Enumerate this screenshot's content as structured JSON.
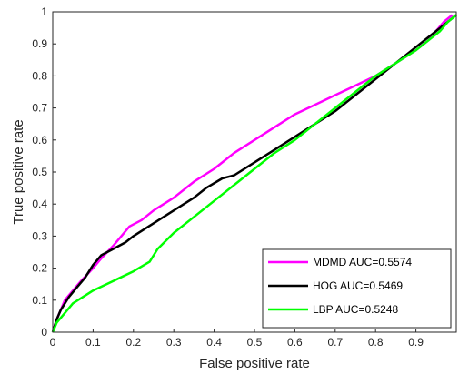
{
  "chart_data": {
    "type": "line",
    "title": "",
    "xlabel": "False positive rate",
    "ylabel": "True positive rate",
    "xlim": [
      0,
      1
    ],
    "ylim": [
      0,
      1
    ],
    "x_ticks": [
      "0",
      "0.1",
      "0.2",
      "0.3",
      "0.4",
      "0.5",
      "0.6",
      "0.7",
      "0.8",
      "0.9"
    ],
    "y_ticks": [
      "0",
      "0.1",
      "0.2",
      "0.3",
      "0.4",
      "0.5",
      "0.6",
      "0.7",
      "0.8",
      "0.9",
      "1"
    ],
    "grid": false,
    "legend_position": "bottom-right",
    "series": [
      {
        "name": "MDMD AUC=0.5574",
        "color": "#ff00ff",
        "points": [
          [
            0,
            0
          ],
          [
            0.01,
            0.04
          ],
          [
            0.02,
            0.07
          ],
          [
            0.03,
            0.1
          ],
          [
            0.05,
            0.13
          ],
          [
            0.07,
            0.16
          ],
          [
            0.1,
            0.2
          ],
          [
            0.12,
            0.23
          ],
          [
            0.15,
            0.27
          ],
          [
            0.17,
            0.3
          ],
          [
            0.19,
            0.33
          ],
          [
            0.22,
            0.35
          ],
          [
            0.25,
            0.38
          ],
          [
            0.3,
            0.42
          ],
          [
            0.35,
            0.47
          ],
          [
            0.4,
            0.51
          ],
          [
            0.45,
            0.56
          ],
          [
            0.5,
            0.6
          ],
          [
            0.55,
            0.64
          ],
          [
            0.6,
            0.68
          ],
          [
            0.65,
            0.71
          ],
          [
            0.7,
            0.74
          ],
          [
            0.75,
            0.77
          ],
          [
            0.8,
            0.8
          ],
          [
            0.85,
            0.84
          ],
          [
            0.9,
            0.88
          ],
          [
            0.93,
            0.91
          ],
          [
            0.95,
            0.94
          ],
          [
            0.97,
            0.97
          ],
          [
            0.99,
            0.99
          ]
        ]
      },
      {
        "name": "HOG AUC=0.5469",
        "color": "#000000",
        "points": [
          [
            0,
            0
          ],
          [
            0.01,
            0.04
          ],
          [
            0.02,
            0.07
          ],
          [
            0.04,
            0.11
          ],
          [
            0.06,
            0.14
          ],
          [
            0.08,
            0.17
          ],
          [
            0.1,
            0.21
          ],
          [
            0.12,
            0.24
          ],
          [
            0.15,
            0.26
          ],
          [
            0.18,
            0.28
          ],
          [
            0.2,
            0.3
          ],
          [
            0.25,
            0.34
          ],
          [
            0.3,
            0.38
          ],
          [
            0.35,
            0.42
          ],
          [
            0.38,
            0.45
          ],
          [
            0.42,
            0.48
          ],
          [
            0.45,
            0.49
          ],
          [
            0.5,
            0.53
          ],
          [
            0.55,
            0.57
          ],
          [
            0.6,
            0.61
          ],
          [
            0.65,
            0.65
          ],
          [
            0.7,
            0.69
          ],
          [
            0.75,
            0.74
          ],
          [
            0.8,
            0.79
          ],
          [
            0.85,
            0.84
          ],
          [
            0.9,
            0.89
          ],
          [
            0.95,
            0.94
          ],
          [
            0.98,
            0.97
          ],
          [
            1,
            0.99
          ]
        ]
      },
      {
        "name": "LBP AUC=0.5248",
        "color": "#00ff00",
        "points": [
          [
            0,
            0
          ],
          [
            0.01,
            0.03
          ],
          [
            0.03,
            0.06
          ],
          [
            0.05,
            0.09
          ],
          [
            0.1,
            0.13
          ],
          [
            0.15,
            0.16
          ],
          [
            0.2,
            0.19
          ],
          [
            0.24,
            0.22
          ],
          [
            0.26,
            0.26
          ],
          [
            0.3,
            0.31
          ],
          [
            0.35,
            0.36
          ],
          [
            0.4,
            0.41
          ],
          [
            0.45,
            0.46
          ],
          [
            0.5,
            0.51
          ],
          [
            0.55,
            0.56
          ],
          [
            0.6,
            0.6
          ],
          [
            0.65,
            0.65
          ],
          [
            0.7,
            0.7
          ],
          [
            0.75,
            0.75
          ],
          [
            0.8,
            0.8
          ],
          [
            0.85,
            0.84
          ],
          [
            0.9,
            0.88
          ],
          [
            0.93,
            0.91
          ],
          [
            0.96,
            0.94
          ],
          [
            0.98,
            0.97
          ],
          [
            1,
            0.99
          ]
        ]
      }
    ]
  }
}
